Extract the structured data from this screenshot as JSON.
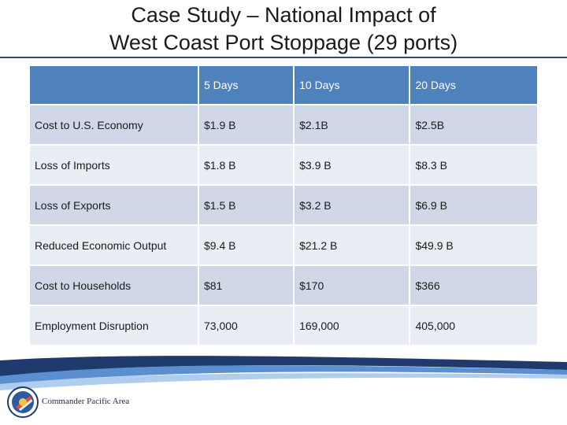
{
  "slide": {
    "title_line1": "Case Study – National Impact of",
    "title_line2": "West Coast Port Stoppage (29 ports)"
  },
  "table": {
    "columns": [
      "",
      "5 Days",
      "10 Days",
      "20 Days"
    ],
    "rows": [
      [
        "Cost to U.S. Economy",
        "$1.9 B",
        "$2.1B",
        "$2.5B"
      ],
      [
        "Loss of Imports",
        "$1.8 B",
        "$3.9 B",
        "$8.3 B"
      ],
      [
        "Loss of Exports",
        "$1.5 B",
        "$3.2 B",
        "$6.9 B"
      ],
      [
        "Reduced Economic Output",
        "$9.4 B",
        "$21.2 B",
        "$49.9 B"
      ],
      [
        "Cost to Households",
        "$81",
        "$170",
        "$366"
      ],
      [
        "Employment Disruption",
        "73,000",
        "169,000",
        "405,000"
      ]
    ]
  },
  "footer": {
    "org": "Commander Pacific Area",
    "logo_icon": "coast-guard-pacific-area-emblem"
  },
  "colors": {
    "header_bg": "#4f81bd",
    "row_dark": "#d0d8e8",
    "row_light": "#e9edf4",
    "wave_dark": "#1f3b6e",
    "wave_light": "#5b8fd0"
  }
}
